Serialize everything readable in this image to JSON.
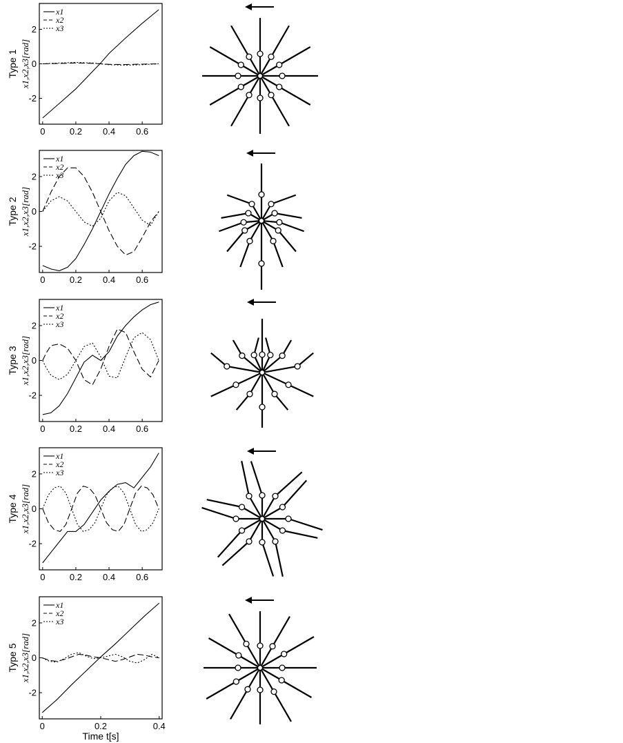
{
  "chart_data": [
    {
      "type": "line",
      "panel_label": "Type 1",
      "ylabel": "x1,x2,x3[rad]",
      "xlabel": "",
      "xlim": [
        -0.02,
        0.72
      ],
      "ylim": [
        -3.5,
        3.5
      ],
      "xticks": [
        "0",
        "0.2",
        "0.4",
        "0.6"
      ],
      "yticks": [
        "-2",
        "0",
        "2"
      ],
      "series": [
        {
          "name": "x1",
          "style": "solid",
          "x": [
            0,
            0.1,
            0.2,
            0.3,
            0.35,
            0.4,
            0.5,
            0.6,
            0.7
          ],
          "y": [
            -3.14,
            -2.3,
            -1.45,
            -0.45,
            0.05,
            0.6,
            1.5,
            2.35,
            3.14
          ]
        },
        {
          "name": "x2",
          "style": "dashed",
          "x": [
            0,
            0.1,
            0.2,
            0.3,
            0.35,
            0.4,
            0.5,
            0.6,
            0.7
          ],
          "y": [
            0,
            0.02,
            0.05,
            0.03,
            0,
            -0.03,
            -0.04,
            -0.02,
            0
          ]
        },
        {
          "name": "x3",
          "style": "dotted",
          "x": [
            0,
            0.1,
            0.2,
            0.3,
            0.35,
            0.4,
            0.5,
            0.6,
            0.7
          ],
          "y": [
            0,
            0.05,
            0.08,
            0.05,
            0,
            -0.05,
            -0.08,
            -0.05,
            0
          ]
        }
      ]
    },
    {
      "type": "line",
      "panel_label": "Type 2",
      "ylabel": "x1,x2,x3[rad]",
      "xlabel": "",
      "xlim": [
        -0.02,
        0.72
      ],
      "ylim": [
        -3.5,
        3.5
      ],
      "xticks": [
        "0",
        "0.2",
        "0.4",
        "0.6"
      ],
      "yticks": [
        "-2",
        "0",
        "2"
      ],
      "series": [
        {
          "name": "x1",
          "style": "solid",
          "x": [
            0,
            0.05,
            0.1,
            0.15,
            0.2,
            0.25,
            0.3,
            0.35,
            0.4,
            0.45,
            0.5,
            0.55,
            0.6,
            0.65,
            0.7
          ],
          "y": [
            -3.1,
            -3.3,
            -3.4,
            -3.2,
            -2.7,
            -1.9,
            -1.0,
            0.0,
            1.0,
            1.9,
            2.7,
            3.2,
            3.45,
            3.4,
            3.2
          ]
        },
        {
          "name": "x2",
          "style": "dashed",
          "x": [
            0,
            0.05,
            0.1,
            0.15,
            0.2,
            0.25,
            0.3,
            0.35,
            0.4,
            0.45,
            0.5,
            0.55,
            0.6,
            0.65,
            0.7
          ],
          "y": [
            0,
            1.1,
            2.0,
            2.5,
            2.5,
            2.0,
            1.1,
            0,
            -1.1,
            -2.0,
            -2.5,
            -2.3,
            -1.5,
            -0.6,
            0
          ]
        },
        {
          "name": "x3",
          "style": "dotted",
          "x": [
            0,
            0.05,
            0.1,
            0.15,
            0.2,
            0.25,
            0.3,
            0.35,
            0.4,
            0.45,
            0.5,
            0.55,
            0.6,
            0.65,
            0.7
          ],
          "y": [
            0,
            0.6,
            0.85,
            0.6,
            0,
            -0.6,
            -0.85,
            -0.4,
            0.6,
            1.1,
            0.9,
            0.2,
            -0.5,
            -0.8,
            0
          ]
        }
      ]
    },
    {
      "type": "line",
      "panel_label": "Type 3",
      "ylabel": "x1,x2,x3[rad]",
      "xlabel": "",
      "xlim": [
        -0.02,
        0.72
      ],
      "ylim": [
        -3.5,
        3.5
      ],
      "xticks": [
        "0",
        "0.2",
        "0.4",
        "0.6"
      ],
      "yticks": [
        "-2",
        "0",
        "2"
      ],
      "series": [
        {
          "name": "x1",
          "style": "solid",
          "x": [
            0,
            0.05,
            0.1,
            0.15,
            0.2,
            0.25,
            0.3,
            0.35,
            0.4,
            0.45,
            0.5,
            0.55,
            0.6,
            0.65,
            0.7
          ],
          "y": [
            -3.1,
            -3.0,
            -2.6,
            -1.9,
            -1.0,
            -0.1,
            0.3,
            0.0,
            0.5,
            1.4,
            2.0,
            2.5,
            2.9,
            3.2,
            3.35
          ]
        },
        {
          "name": "x2",
          "style": "dashed",
          "x": [
            0,
            0.02,
            0.05,
            0.1,
            0.15,
            0.2,
            0.25,
            0.3,
            0.35,
            0.4,
            0.45,
            0.5,
            0.55,
            0.6,
            0.65,
            0.7
          ],
          "y": [
            0,
            0.4,
            0.85,
            0.95,
            0.7,
            0.0,
            -1.1,
            -1.4,
            -0.5,
            0.8,
            1.8,
            1.6,
            0.5,
            -0.5,
            -0.95,
            0
          ]
        },
        {
          "name": "x3",
          "style": "dotted",
          "x": [
            0,
            0.02,
            0.05,
            0.1,
            0.15,
            0.2,
            0.25,
            0.3,
            0.35,
            0.4,
            0.45,
            0.5,
            0.55,
            0.6,
            0.65,
            0.7
          ],
          "y": [
            0,
            -0.4,
            -0.85,
            -1.1,
            -0.8,
            0.0,
            0.8,
            1.0,
            0.2,
            -0.9,
            -1.0,
            0.2,
            1.3,
            1.6,
            1.2,
            0
          ]
        }
      ]
    },
    {
      "type": "line",
      "panel_label": "Type 4",
      "ylabel": "x1,x2,x3[rad]",
      "xlabel": "",
      "xlim": [
        -0.02,
        0.72
      ],
      "ylim": [
        -3.5,
        3.5
      ],
      "xticks": [
        "0",
        "0.2",
        "0.4",
        "0.6"
      ],
      "yticks": [
        "-2",
        "0",
        "2"
      ],
      "series": [
        {
          "name": "x1",
          "style": "solid",
          "x": [
            0,
            0.05,
            0.1,
            0.15,
            0.2,
            0.25,
            0.3,
            0.35,
            0.4,
            0.45,
            0.5,
            0.55,
            0.6,
            0.65,
            0.7
          ],
          "y": [
            -3.1,
            -2.5,
            -1.9,
            -1.3,
            -1.3,
            -0.9,
            -0.2,
            0.5,
            1.0,
            1.4,
            1.5,
            1.2,
            1.8,
            2.4,
            3.2
          ]
        },
        {
          "name": "x2",
          "style": "dashed",
          "x": [
            0,
            0.035,
            0.07,
            0.105,
            0.14,
            0.175,
            0.21,
            0.245,
            0.28,
            0.315,
            0.35,
            0.385,
            0.42,
            0.455,
            0.49,
            0.525,
            0.56,
            0.595,
            0.63,
            0.665,
            0.7
          ],
          "y": [
            0,
            -0.8,
            -1.2,
            -1.3,
            -0.9,
            0,
            0.9,
            1.3,
            1.2,
            0.8,
            0,
            -0.8,
            -1.2,
            -1.3,
            -0.9,
            0,
            0.9,
            1.3,
            1.2,
            0.8,
            0
          ]
        },
        {
          "name": "x3",
          "style": "dotted",
          "x": [
            0,
            0.035,
            0.07,
            0.105,
            0.14,
            0.175,
            0.21,
            0.245,
            0.28,
            0.315,
            0.35,
            0.385,
            0.42,
            0.455,
            0.49,
            0.525,
            0.56,
            0.595,
            0.63,
            0.665,
            0.7
          ],
          "y": [
            0,
            0.8,
            1.2,
            1.3,
            0.9,
            0,
            -0.9,
            -1.3,
            -1.2,
            -0.8,
            0,
            0.8,
            1.2,
            1.3,
            0.9,
            0,
            -0.9,
            -1.3,
            -1.2,
            -0.8,
            0
          ]
        }
      ]
    },
    {
      "type": "line",
      "panel_label": "Type 5",
      "ylabel": "x1,x2,x3[rad]",
      "xlabel": "Time t[s]",
      "xlim": [
        -0.01,
        0.41
      ],
      "ylim": [
        -3.5,
        3.5
      ],
      "xticks": [
        "0",
        "0.2",
        "0.4"
      ],
      "yticks": [
        "-2",
        "0",
        "2"
      ],
      "series": [
        {
          "name": "x1",
          "style": "solid",
          "x": [
            0,
            0.05,
            0.1,
            0.15,
            0.2,
            0.25,
            0.3,
            0.35,
            0.4
          ],
          "y": [
            -3.14,
            -2.4,
            -1.55,
            -0.75,
            0.05,
            0.8,
            1.6,
            2.4,
            3.14
          ]
        },
        {
          "name": "x2",
          "style": "dashed",
          "x": [
            0,
            0.025,
            0.05,
            0.075,
            0.1,
            0.125,
            0.15,
            0.175,
            0.2,
            0.225,
            0.25,
            0.275,
            0.3,
            0.325,
            0.35,
            0.375,
            0.4
          ],
          "y": [
            0,
            -0.15,
            -0.2,
            -0.1,
            0.05,
            0.2,
            0.15,
            0.05,
            0,
            -0.1,
            -0.2,
            -0.1,
            0.05,
            0.2,
            0.15,
            0.05,
            0
          ]
        },
        {
          "name": "x3",
          "style": "dotted",
          "x": [
            0,
            0.025,
            0.05,
            0.075,
            0.1,
            0.125,
            0.15,
            0.175,
            0.2,
            0.225,
            0.25,
            0.275,
            0.3,
            0.325,
            0.35,
            0.375,
            0.4
          ],
          "y": [
            0,
            -0.2,
            -0.25,
            -0.05,
            0.2,
            0.3,
            0.1,
            -0.05,
            0,
            0.1,
            0.2,
            0.05,
            -0.2,
            -0.3,
            -0.1,
            0.2,
            0
          ]
        }
      ]
    }
  ],
  "figures": [
    {
      "arrow": "←",
      "pattern": "type1"
    },
    {
      "arrow": "←",
      "pattern": "type2"
    },
    {
      "arrow": "←",
      "pattern": "type3"
    },
    {
      "arrow": "←",
      "pattern": "type4"
    },
    {
      "arrow": "←",
      "pattern": "type5"
    }
  ]
}
